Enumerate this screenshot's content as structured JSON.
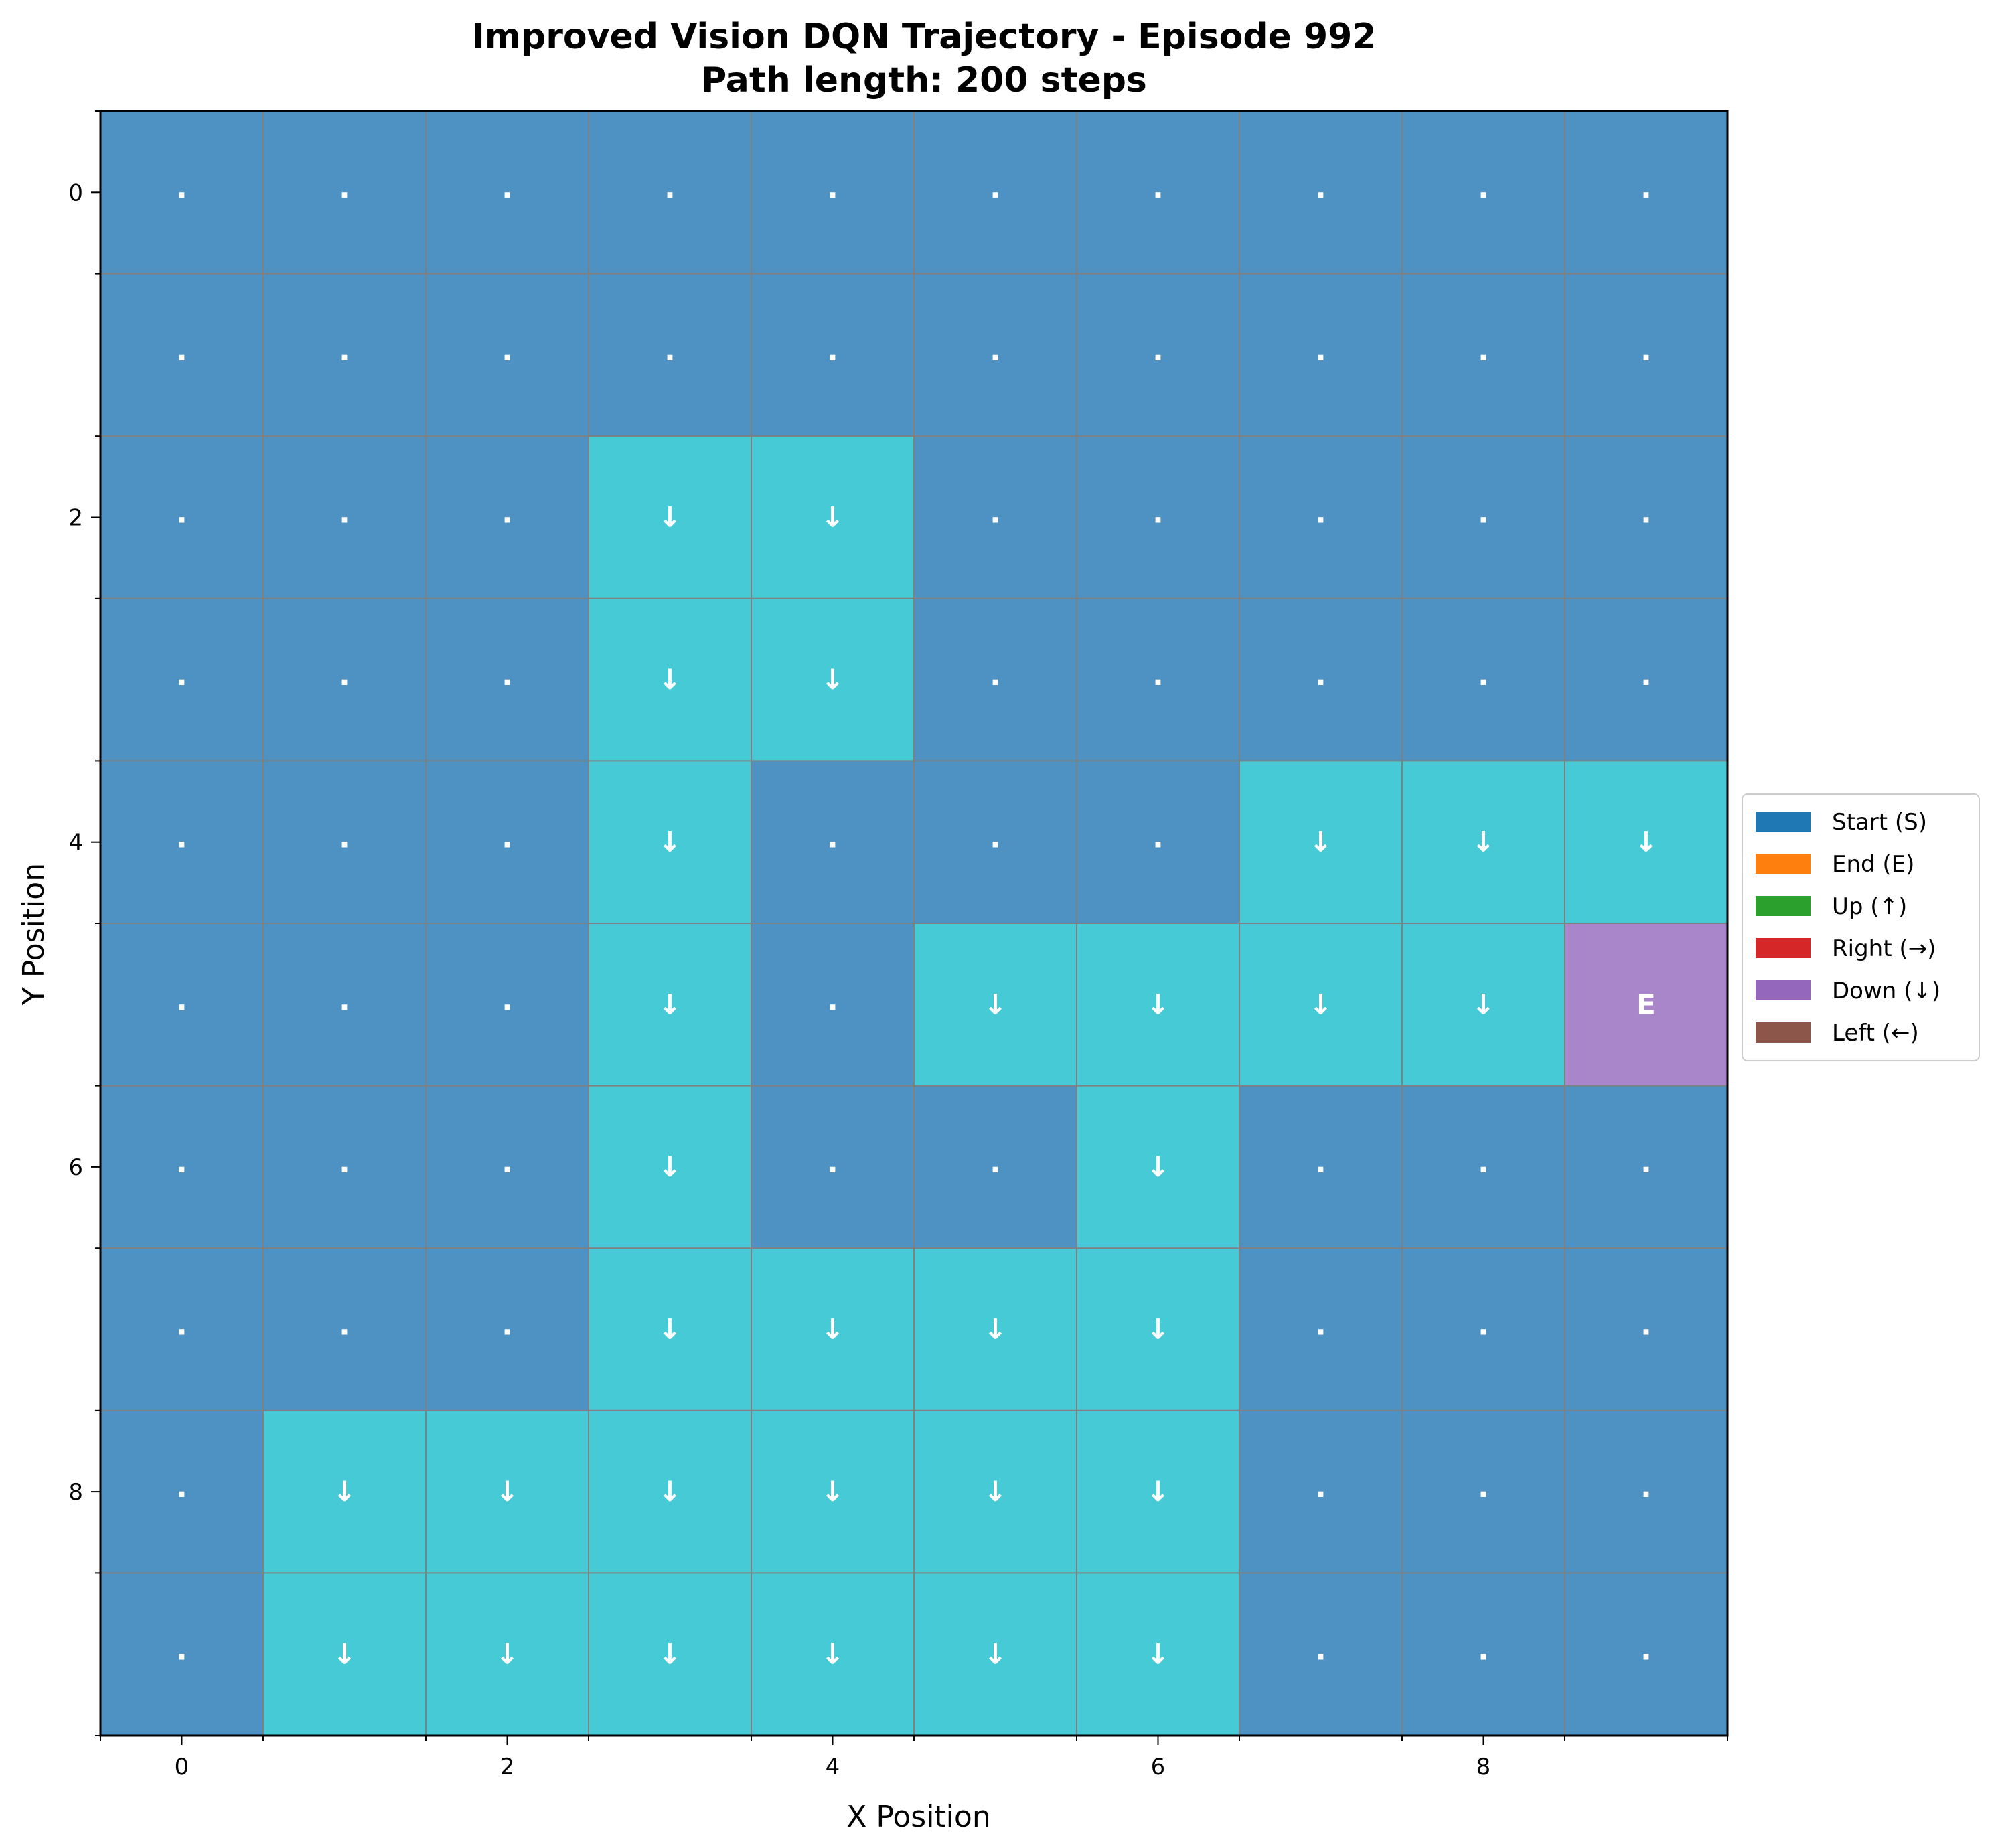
{
  "chart_data": {
    "type": "heatmap",
    "title": "Improved Vision DQN Trajectory - Episode 992",
    "subtitle": "Path length: 200 steps",
    "xlabel": "X Position",
    "ylabel": "Y Position",
    "x_ticks": [
      "0",
      "2",
      "4",
      "6",
      "8"
    ],
    "y_ticks": [
      "0",
      "2",
      "4",
      "6",
      "8"
    ],
    "xlim": [
      -0.5,
      9.5
    ],
    "ylim": [
      9.5,
      -0.5
    ],
    "grid": true,
    "legend_placement": "right",
    "legend": [
      {
        "label": "Start (S)",
        "color": "#1f77b4"
      },
      {
        "label": "End (E)",
        "color": "#ff7f0e"
      },
      {
        "label": "Up (↑)",
        "color": "#2ca02c"
      },
      {
        "label": "Right (→)",
        "color": "#d62728"
      },
      {
        "label": "Down (↓)",
        "color": "#9467bd"
      },
      {
        "label": "Left (←)",
        "color": "#8c564b"
      }
    ],
    "colors": {
      "empty": "#4d92c3",
      "path": "#46cad6",
      "end": "#a886c9",
      "grid": "#808080",
      "cell_text": "#ffffff"
    },
    "symbols": {
      ".": "empty",
      "↓": "path",
      "E": "end"
    },
    "grid_rows": [
      [
        ".",
        ".",
        ".",
        ".",
        ".",
        ".",
        ".",
        ".",
        ".",
        "."
      ],
      [
        ".",
        ".",
        ".",
        ".",
        ".",
        ".",
        ".",
        ".",
        ".",
        "."
      ],
      [
        ".",
        ".",
        ".",
        "↓",
        "↓",
        ".",
        ".",
        ".",
        ".",
        "."
      ],
      [
        ".",
        ".",
        ".",
        "↓",
        "↓",
        ".",
        ".",
        ".",
        ".",
        "."
      ],
      [
        ".",
        ".",
        ".",
        "↓",
        ".",
        ".",
        ".",
        "↓",
        "↓",
        "↓"
      ],
      [
        ".",
        ".",
        ".",
        "↓",
        ".",
        "↓",
        "↓",
        "↓",
        "↓",
        "E"
      ],
      [
        ".",
        ".",
        ".",
        "↓",
        ".",
        ".",
        "↓",
        ".",
        ".",
        "."
      ],
      [
        ".",
        ".",
        ".",
        "↓",
        "↓",
        "↓",
        "↓",
        ".",
        ".",
        "."
      ],
      [
        ".",
        "↓",
        "↓",
        "↓",
        "↓",
        "↓",
        "↓",
        ".",
        ".",
        "."
      ],
      [
        ".",
        "↓",
        "↓",
        "↓",
        "↓",
        "↓",
        "↓",
        ".",
        ".",
        "."
      ]
    ]
  }
}
